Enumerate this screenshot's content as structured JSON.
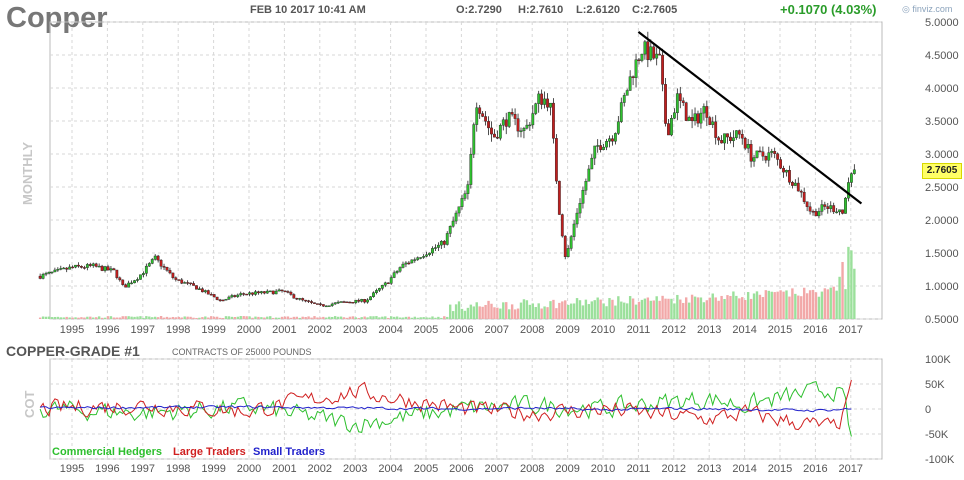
{
  "header": {
    "symbol": "Copper",
    "datetime": "FEB 10 2017 10:41 AM",
    "open": "O:2.7290",
    "high": "H:2.7610",
    "low": "L:2.6120",
    "close": "C:2.7605",
    "change": "+0.1070 (4.03%)",
    "brand": "finviz.com",
    "period": "MONTHLY"
  },
  "cot": {
    "title": "COPPER-GRADE #1",
    "subtitle": "CONTRACTS OF 25000 POUNDS",
    "side_label": "COT",
    "legend": [
      "Commercial Hedgers",
      "Large Traders",
      "Small Traders"
    ]
  },
  "colors": {
    "up": "#2fc02f",
    "down": "#c01e1e",
    "commercial": "#2dbf2d",
    "large": "#d02020",
    "small": "#2222cc",
    "grid": "#d7d7d7",
    "trendline": "#000000",
    "price_tag": "#ffff66"
  },
  "chart_data": [
    {
      "type": "candlestick",
      "title": "Copper",
      "period": "monthly",
      "x_ticks": [
        "1995",
        "1996",
        "1997",
        "1998",
        "1999",
        "2000",
        "2001",
        "2002",
        "2003",
        "2004",
        "2005",
        "2006",
        "2007",
        "2008",
        "2009",
        "2010",
        "2011",
        "2012",
        "2013",
        "2014",
        "2015",
        "2016",
        "2017"
      ],
      "y_ticks": [
        "5.0000",
        "4.5000",
        "4.0000",
        "3.5000",
        "3.0000",
        "2.5000",
        "2.0000",
        "1.5000",
        "1.0000",
        "0.5000"
      ],
      "ylim": [
        0.5,
        5.0
      ],
      "last_price": "2.7605",
      "anchors": [
        [
          1994.1,
          1.15
        ],
        [
          1995.0,
          1.28
        ],
        [
          1995.6,
          1.3
        ],
        [
          1996.2,
          1.22
        ],
        [
          1996.45,
          0.98
        ],
        [
          1996.9,
          1.15
        ],
        [
          1997.35,
          1.42
        ],
        [
          1997.9,
          1.1
        ],
        [
          1998.5,
          0.98
        ],
        [
          1999.2,
          0.78
        ],
        [
          1999.8,
          0.88
        ],
        [
          2000.5,
          0.9
        ],
        [
          2000.95,
          0.92
        ],
        [
          2001.5,
          0.78
        ],
        [
          2002.0,
          0.7
        ],
        [
          2002.6,
          0.75
        ],
        [
          2003.3,
          0.78
        ],
        [
          2003.9,
          1.05
        ],
        [
          2004.3,
          1.3
        ],
        [
          2004.8,
          1.45
        ],
        [
          2005.5,
          1.65
        ],
        [
          2006.2,
          2.5
        ],
        [
          2006.4,
          3.85
        ],
        [
          2006.9,
          3.25
        ],
        [
          2007.3,
          3.55
        ],
        [
          2007.8,
          3.35
        ],
        [
          2008.2,
          3.85
        ],
        [
          2008.5,
          3.8
        ],
        [
          2008.75,
          2.2
        ],
        [
          2008.95,
          1.4
        ],
        [
          2009.3,
          2.2
        ],
        [
          2009.8,
          3.1
        ],
        [
          2010.3,
          3.3
        ],
        [
          2010.8,
          4.2
        ],
        [
          2011.1,
          4.6
        ],
        [
          2011.6,
          4.4
        ],
        [
          2011.8,
          3.3
        ],
        [
          2012.1,
          3.85
        ],
        [
          2012.5,
          3.45
        ],
        [
          2012.9,
          3.7
        ],
        [
          2013.3,
          3.2
        ],
        [
          2013.9,
          3.3
        ],
        [
          2014.2,
          2.95
        ],
        [
          2014.8,
          3.0
        ],
        [
          2015.2,
          2.7
        ],
        [
          2015.5,
          2.5
        ],
        [
          2015.9,
          2.1
        ],
        [
          2016.3,
          2.2
        ],
        [
          2016.8,
          2.15
        ],
        [
          2016.95,
          2.55
        ],
        [
          2017.1,
          2.7605
        ]
      ],
      "trendline": [
        [
          2011.0,
          4.85
        ],
        [
          2017.3,
          2.25
        ]
      ],
      "volume_note": "monthly volume bars along the bottom"
    },
    {
      "type": "line",
      "title": "COPPER-GRADE #1",
      "y_ticks": [
        "100K",
        "50K",
        "0",
        "-50K",
        "-100K"
      ],
      "ylim": [
        -100000,
        100000
      ],
      "series": [
        {
          "name": "Commercial Hedgers",
          "anchors": [
            [
              1994.1,
              0
            ],
            [
              1997.0,
              -8000
            ],
            [
              2000.0,
              4000
            ],
            [
              2003.0,
              -30000
            ],
            [
              2006.0,
              0
            ],
            [
              2008.0,
              8000
            ],
            [
              2010.0,
              0
            ],
            [
              2011.5,
              12000
            ],
            [
              2013.0,
              20000
            ],
            [
              2014.0,
              8000
            ],
            [
              2015.3,
              25000
            ],
            [
              2016.5,
              40000
            ],
            [
              2016.8,
              20000
            ],
            [
              2017.0,
              -55000
            ]
          ]
        },
        {
          "name": "Large Traders",
          "anchors": [
            [
              1994.1,
              0
            ],
            [
              1997.0,
              8000
            ],
            [
              2000.0,
              -4000
            ],
            [
              2003.0,
              35000
            ],
            [
              2006.0,
              0
            ],
            [
              2008.0,
              -8000
            ],
            [
              2010.0,
              0
            ],
            [
              2011.5,
              -10000
            ],
            [
              2013.0,
              -20000
            ],
            [
              2014.0,
              -8000
            ],
            [
              2015.3,
              -25000
            ],
            [
              2016.5,
              -38000
            ],
            [
              2016.8,
              -15000
            ],
            [
              2017.0,
              58000
            ]
          ]
        },
        {
          "name": "Small Traders",
          "anchors": [
            [
              1994.1,
              2000
            ],
            [
              1997.0,
              3000
            ],
            [
              2000.0,
              4000
            ],
            [
              2003.0,
              2000
            ],
            [
              2006.0,
              0
            ],
            [
              2008.0,
              2000
            ],
            [
              2010.0,
              -2000
            ],
            [
              2012.0,
              1000
            ],
            [
              2014.0,
              -1000
            ],
            [
              2016.0,
              -3000
            ],
            [
              2017.0,
              0
            ]
          ]
        }
      ]
    }
  ]
}
